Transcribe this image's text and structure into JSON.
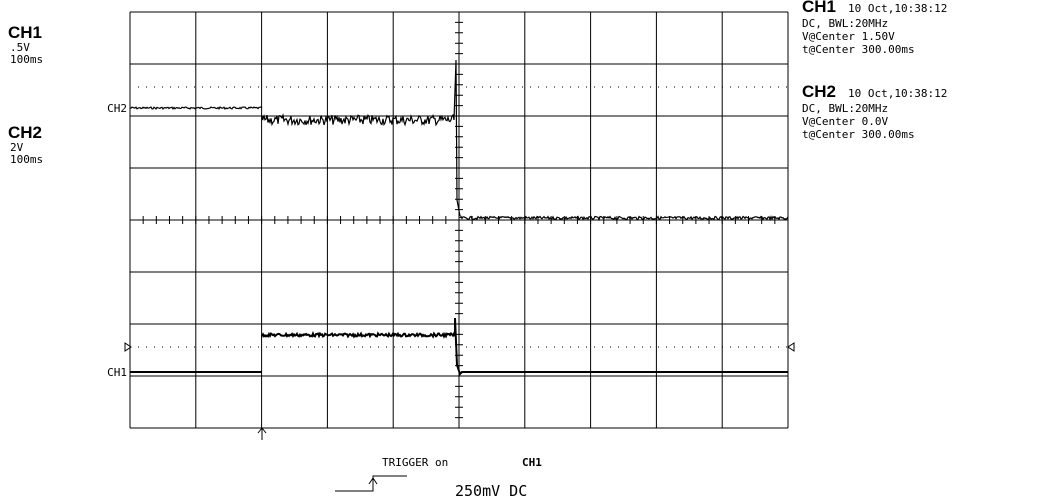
{
  "left_panel": {
    "channels": [
      {
        "name": "CH1",
        "scale": ".5V",
        "timebase": "100ms"
      },
      {
        "name": "CH2",
        "scale": "2V",
        "timebase": "100ms"
      }
    ]
  },
  "trace_labels": [
    "CH2",
    "CH1"
  ],
  "info": [
    {
      "channel": "CH1",
      "timestamp": "10 Oct,10:38:12",
      "coupling": "DC, BWL:20MHz",
      "v_center": "V@Center 1.50V",
      "t_center": "t@Center 300.00ms"
    },
    {
      "channel": "CH2",
      "timestamp": "10 Oct,10:38:12",
      "coupling": "DC, BWL:20MHz",
      "v_center": "V@Center 0.0V",
      "t_center": "t@Center 300.00ms"
    }
  ],
  "trigger": {
    "text": "TRIGGER on",
    "channel": "CH1",
    "level": "250mV DC"
  }
}
